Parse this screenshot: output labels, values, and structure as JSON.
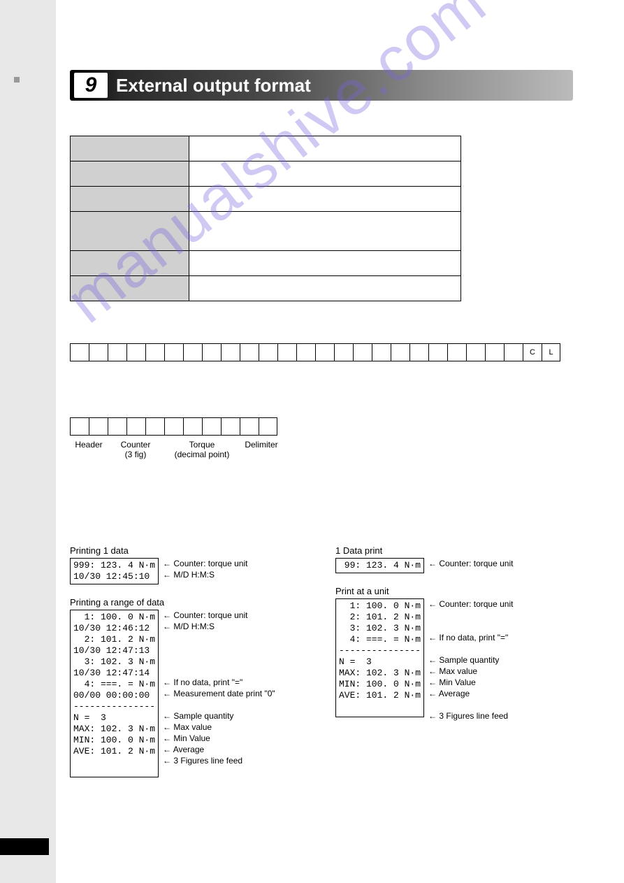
{
  "chapter": {
    "number": "9",
    "title": "External output format"
  },
  "byte_end": {
    "c": "C",
    "l": "L"
  },
  "row2_labels": {
    "header": "Header",
    "counter": "Counter",
    "counter_sub": "(3 fig)",
    "torque": "Torque",
    "torque_sub": "(decimal point)",
    "delimiter": "Delimiter"
  },
  "colors": {
    "margin": "#e8e8e8",
    "bar_dark": "#000000",
    "bar_light": "#bbbbbb",
    "header_bg": "#d0d0d0",
    "watermark": "rgba(120,100,220,0.35)"
  },
  "left": {
    "title1": "Printing 1 data",
    "box1": "999: 123. 4 N·m\n10/30 12:45:10",
    "ann1": [
      "Counter: torque unit",
      "M/D H:M:S"
    ],
    "title2": "Printing a range of data",
    "box2": "  1: 100. 0 N·m\n10/30 12:46:12\n  2: 101. 2 N·m\n10/30 12:47:13\n  3: 102. 3 N·m\n10/30 12:47:14\n  4: ===. = N·m\n00/00 00:00:00\n---------------\nN =  3\nMAX: 102. 3 N·m\nMIN: 100. 0 N·m\nAVE: 101. 2 N·m\n",
    "ann2": [
      "Counter: torque unit",
      "M/D H:M:S",
      "",
      "",
      "",
      "",
      "If no data, print \"=\"",
      "Measurement date print \"0\"",
      "",
      "Sample quantity",
      "Max value",
      "Min Value",
      "Average",
      "3 Figures line feed"
    ]
  },
  "right": {
    "title1": "1 Data print",
    "box1": " 99: 123. 4 N·m",
    "ann1": [
      "Counter: torque unit"
    ],
    "title2": "Print at a unit",
    "box2": "  1: 100. 0 N·m\n  2: 101. 2 N·m\n  3: 102. 3 N·m\n  4: ===. = N·m\n---------------\nN =  3\nMAX: 102. 3 N·m\nMIN: 100. 0 N·m\nAVE: 101. 2 N·m\n",
    "ann2": [
      "Counter: torque unit",
      "",
      "",
      "If no data, print \"=\"",
      "",
      "Sample quantity",
      "Max value",
      "Min Value",
      "Average",
      "",
      "3 Figures line feed"
    ]
  }
}
